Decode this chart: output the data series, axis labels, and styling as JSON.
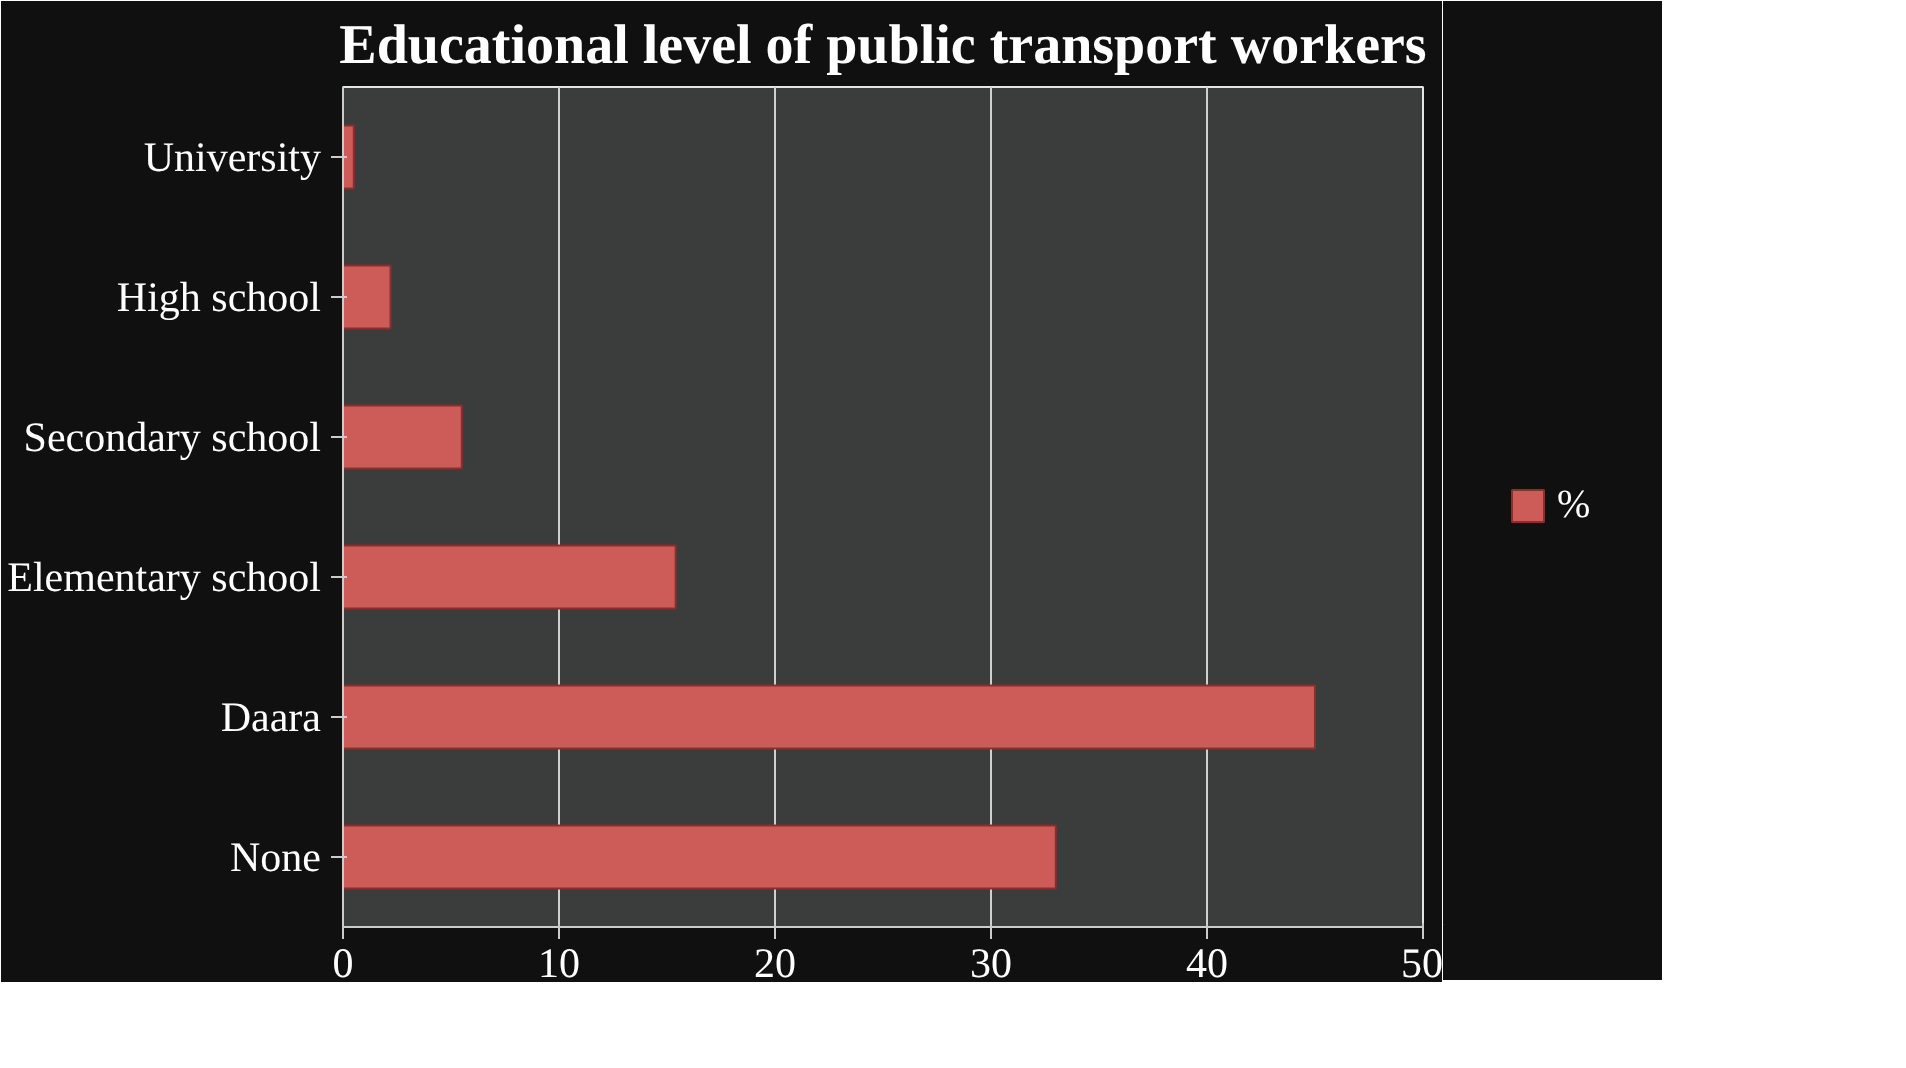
{
  "chart_data": {
    "type": "bar",
    "orientation": "horizontal",
    "title": "Educational level of public transport workers",
    "categories": [
      "University",
      "High school",
      "Secondary school",
      "Elementary school",
      "Daara",
      "None"
    ],
    "series": [
      {
        "name": "%",
        "color": "#cd5c58",
        "values": [
          0.5,
          2.2,
          5.5,
          15.4,
          45,
          33
        ]
      }
    ],
    "xlim": [
      0,
      50
    ],
    "xticks": [
      0,
      10,
      20,
      30,
      40,
      50
    ],
    "grid": "x",
    "legend": "right"
  }
}
